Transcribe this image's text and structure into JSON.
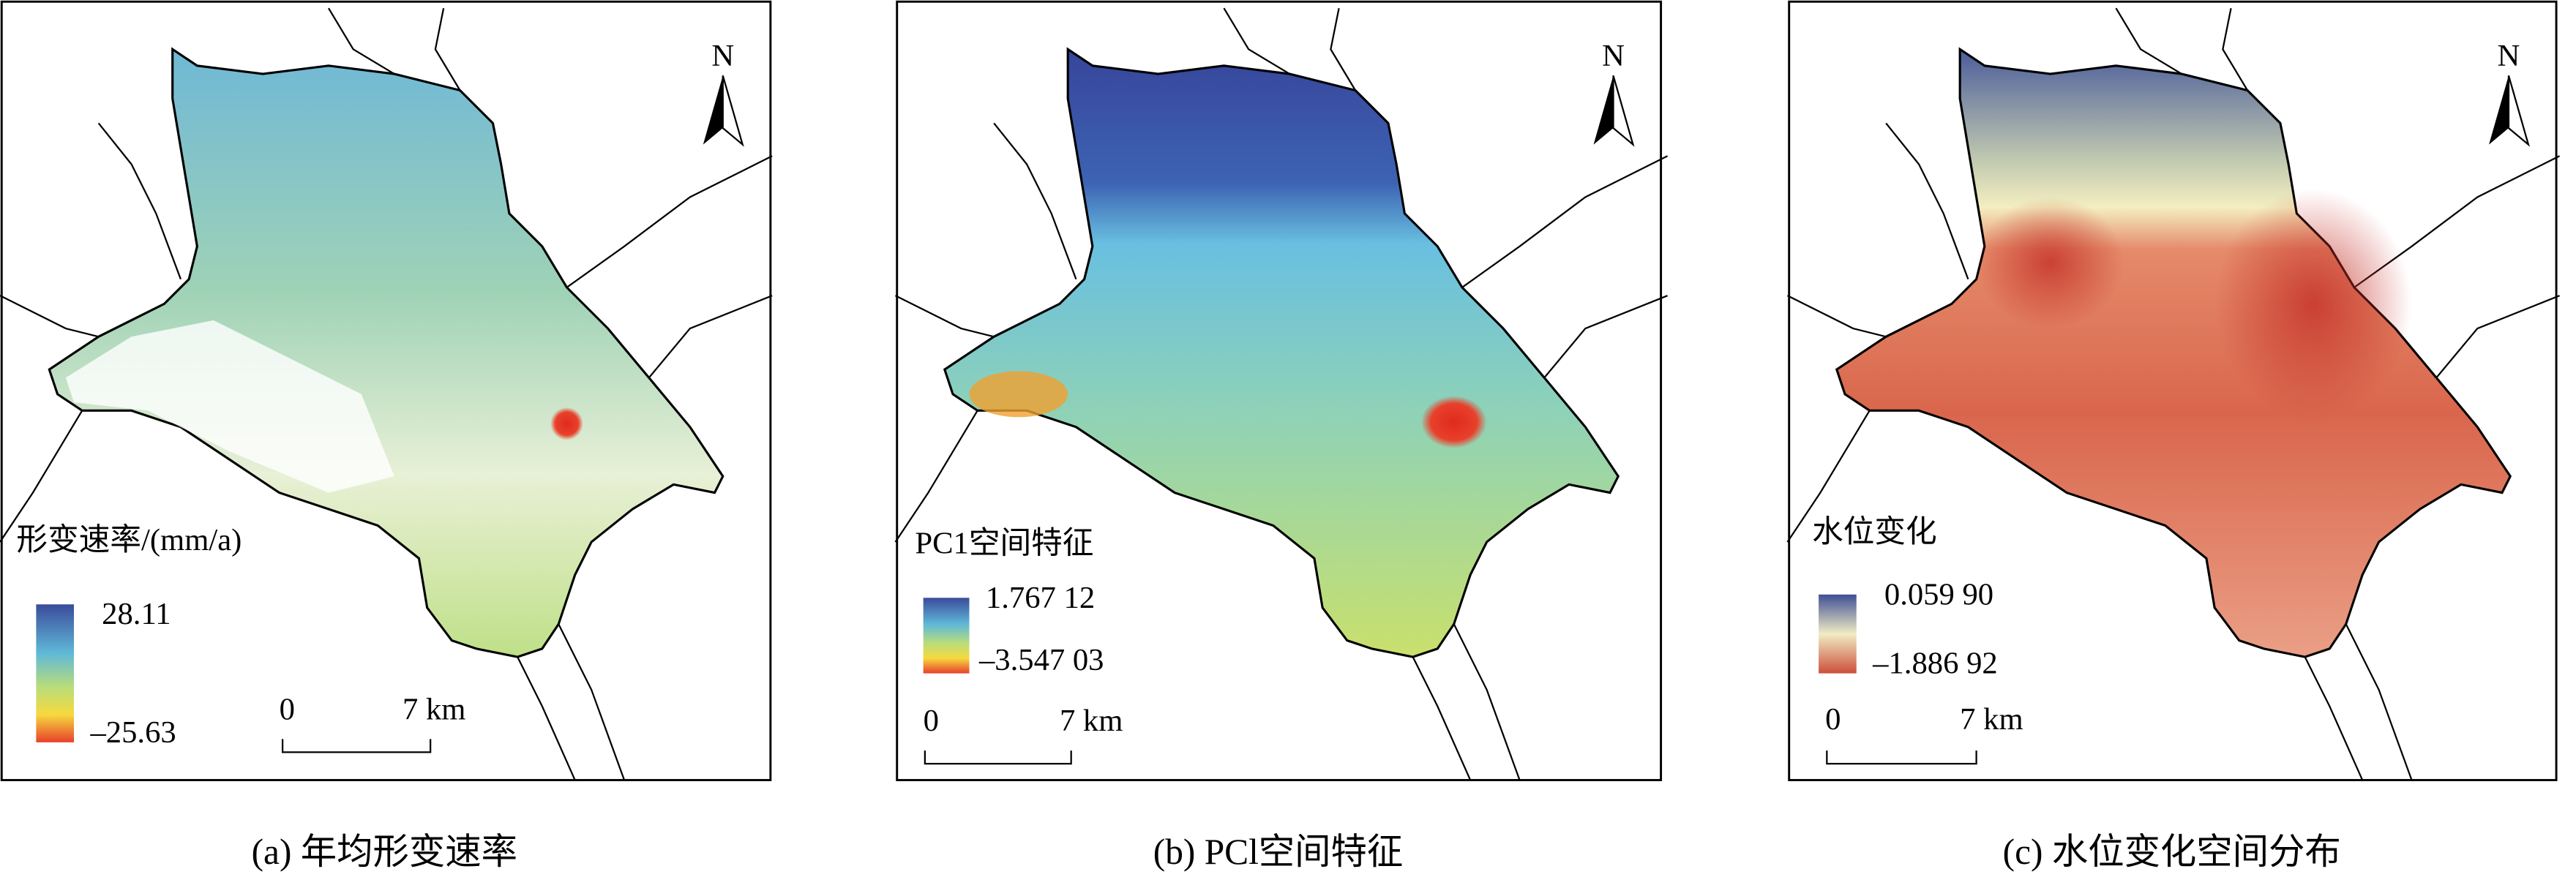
{
  "panels": [
    {
      "legend_title": "形变速率/(mm/a)",
      "legend_max": "28.11",
      "legend_min": "–25.63",
      "scale_start": "0",
      "scale_end": "7 km",
      "north": "N",
      "caption": "(a) 年均形变速率"
    },
    {
      "legend_title": "PC1空间特征",
      "legend_max": "1.767 12",
      "legend_min": "–3.547 03",
      "scale_start": "0",
      "scale_end": "7 km",
      "north": "N",
      "caption": "(b) PCl空间特征"
    },
    {
      "legend_title": "水位变化",
      "legend_max": "0.059 90",
      "legend_min": "–1.886 92",
      "scale_start": "0",
      "scale_end": "7 km",
      "north": "N",
      "caption": "(c) 水位变化空间分布"
    }
  ]
}
